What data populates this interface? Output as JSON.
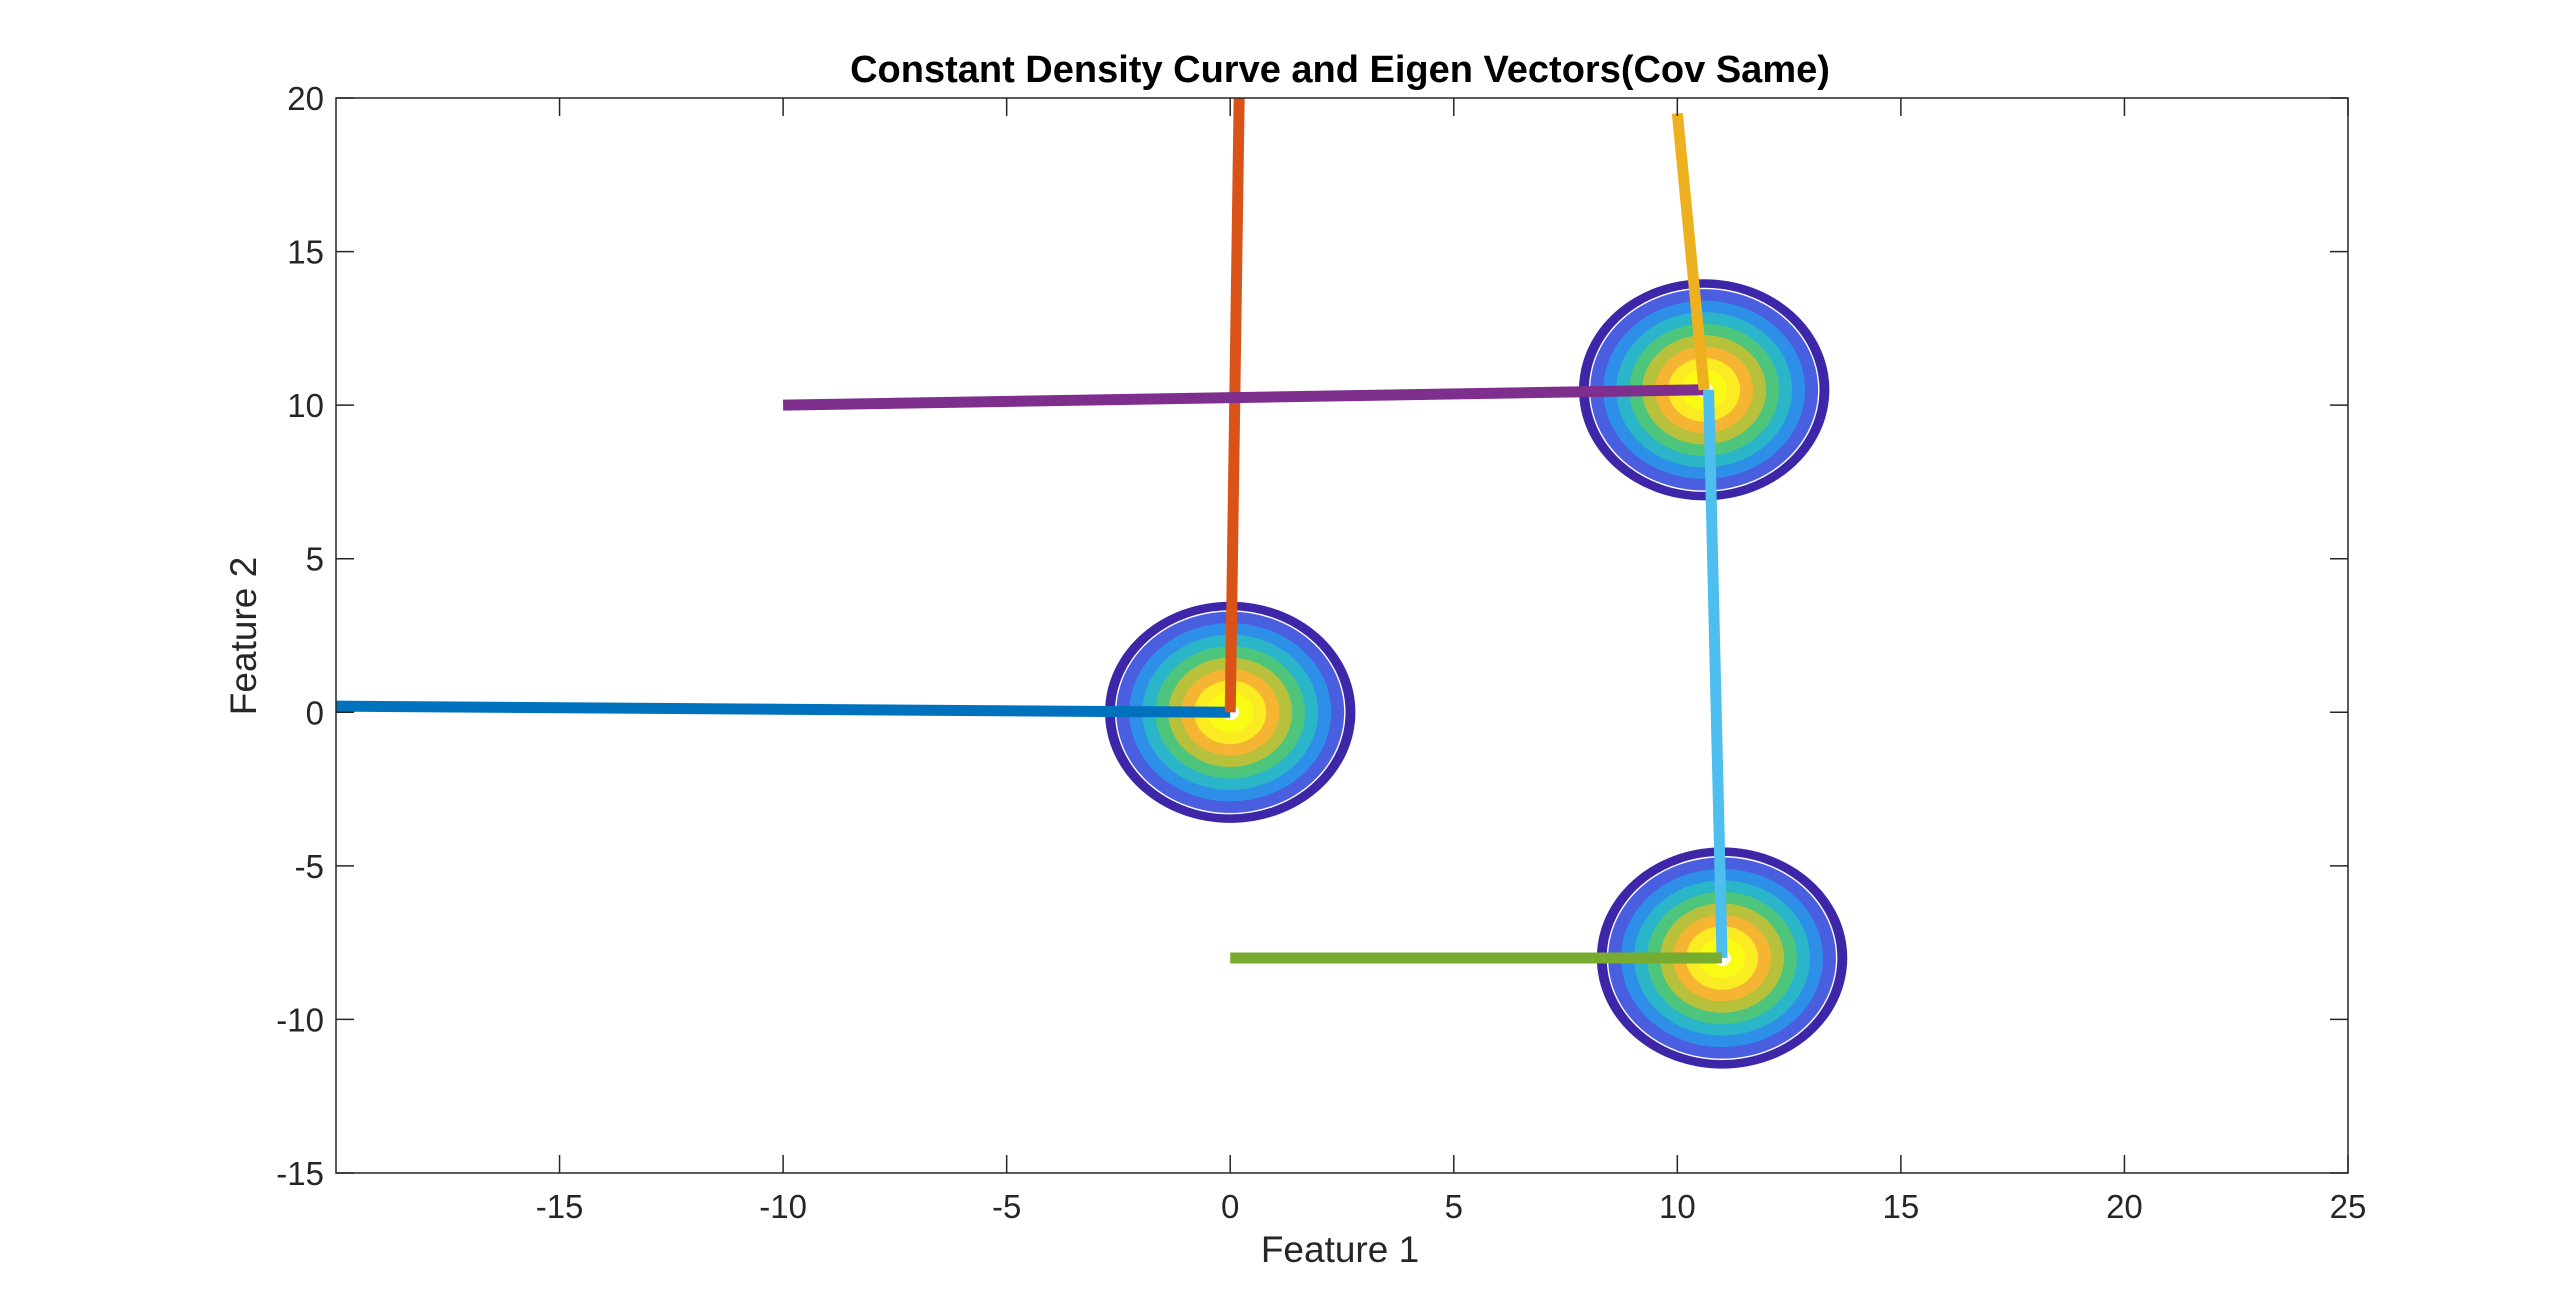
{
  "chart_data": {
    "type": "contour+line",
    "title": "Constant Density Curve and Eigen Vectors(Cov Same)",
    "xlabel": "Feature 1",
    "ylabel": "Feature 2",
    "xlim": [
      -20,
      25
    ],
    "ylim": [
      -15,
      20
    ],
    "xticks": [
      -15,
      -10,
      -5,
      0,
      5,
      10,
      15,
      20,
      25
    ],
    "yticks": [
      -15,
      -10,
      -5,
      0,
      5,
      10,
      15,
      20
    ],
    "grid": false,
    "legend": "none",
    "contour_colors": [
      "#3e26a8",
      "#4a5ee0",
      "#2e8fe8",
      "#2ab5c9",
      "#4ec57c",
      "#b7c13c",
      "#f5b533",
      "#fbeb23",
      "#f9fb14"
    ],
    "distributions": [
      {
        "mean": [
          0,
          0
        ],
        "radius": [
          2.8,
          3.6
        ]
      },
      {
        "mean": [
          10.6,
          10.5
        ],
        "radius": [
          2.8,
          3.6
        ]
      },
      {
        "mean": [
          11.0,
          -8.0
        ],
        "radius": [
          2.8,
          3.6
        ]
      }
    ],
    "eigen_vectors": [
      {
        "color": "#0072bd",
        "x": [
          0,
          -20
        ],
        "y": [
          0,
          0.2
        ]
      },
      {
        "color": "#d95319",
        "x": [
          0,
          0.2
        ],
        "y": [
          0,
          20
        ]
      },
      {
        "color": "#7e2f8e",
        "x": [
          10.6,
          -10
        ],
        "y": [
          10.5,
          10
        ]
      },
      {
        "color": "#edb120",
        "x": [
          10.6,
          10
        ],
        "y": [
          10.5,
          19.5
        ]
      },
      {
        "color": "#4dbeee",
        "x": [
          11.0,
          10.7
        ],
        "y": [
          -8.0,
          10.5
        ]
      },
      {
        "color": "#77ac30",
        "x": [
          11.0,
          0
        ],
        "y": [
          -8.0,
          -8.0
        ]
      }
    ]
  }
}
